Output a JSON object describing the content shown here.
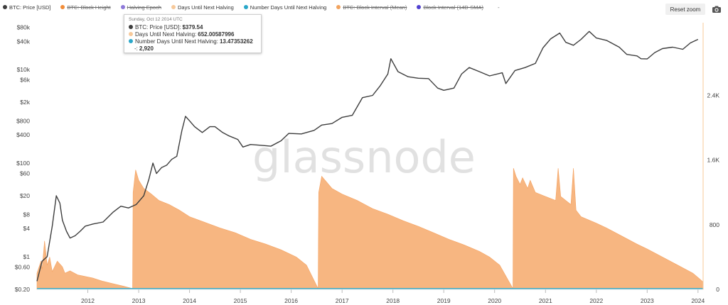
{
  "legend": {
    "items": [
      {
        "label": "BTC: Price [USD]",
        "color": "#3d3d3d",
        "hidden": false
      },
      {
        "label": "BTC: Block Height",
        "color": "#f28c38",
        "hidden": true
      },
      {
        "label": "Halving Epoch",
        "color": "#8e79d9",
        "hidden": true
      },
      {
        "label": "Days Until Next Halving",
        "color": "#f7c99a",
        "hidden": false
      },
      {
        "label": "Number Days Until Next Halving",
        "color": "#2aa7c9",
        "hidden": false
      },
      {
        "label": "BTC: Block Interval (Mean)",
        "color": "#f2a35e",
        "hidden": true
      },
      {
        "label": "Block Interval (14D-SMA)",
        "color": "#5040d0",
        "hidden": true
      }
    ],
    "more": "-"
  },
  "toolbar": {
    "reset_zoom": "Reset zoom",
    "camera_icon": "camera-icon"
  },
  "watermark": "glassnode",
  "tooltip": {
    "date": "Sunday, Oct 12 2014 UTC",
    "rows": [
      {
        "label": "BTC: Price [USD]",
        "value": "$379.54",
        "color": "#3d3d3d"
      },
      {
        "label": "Days Until Next Halving",
        "value": "652.00587996",
        "color": "#f7c99a"
      },
      {
        "label": "Number Days Until Next Halving",
        "value": "13.47353262",
        "color": "#2aa7c9"
      },
      {
        "label": "-:",
        "value": "2,920",
        "color": ""
      }
    ]
  },
  "chart_data": {
    "type": "line",
    "left_axis": {
      "scale": "log",
      "ticks": [
        {
          "label": "$80k",
          "value": 80000
        },
        {
          "label": "$40k",
          "value": 40000
        },
        {
          "label": "$10k",
          "value": 10000
        },
        {
          "label": "$6k",
          "value": 6000
        },
        {
          "label": "$2k",
          "value": 2000
        },
        {
          "label": "$800",
          "value": 800
        },
        {
          "label": "$400",
          "value": 400
        },
        {
          "label": "$100",
          "value": 100
        },
        {
          "label": "$60",
          "value": 60
        },
        {
          "label": "$20",
          "value": 20
        },
        {
          "label": "$8",
          "value": 8
        },
        {
          "label": "$4",
          "value": 4
        },
        {
          "label": "$1",
          "value": 1
        },
        {
          "label": "$0.60",
          "value": 0.6
        },
        {
          "label": "$0.20",
          "value": 0.2
        }
      ]
    },
    "right_axis": {
      "scale": "linear",
      "range": [
        0,
        3300
      ],
      "ticks": [
        {
          "label": "0",
          "value": 0
        },
        {
          "label": "800",
          "value": 800
        },
        {
          "label": "1.6K",
          "value": 1600
        },
        {
          "label": "2.4K",
          "value": 2400
        }
      ]
    },
    "x_axis": {
      "type": "year",
      "range": [
        2011.0,
        2024.1
      ],
      "ticks": [
        {
          "label": "2012",
          "value": 2012
        },
        {
          "label": "2013",
          "value": 2013
        },
        {
          "label": "2014",
          "value": 2014
        },
        {
          "label": "2015",
          "value": 2015
        },
        {
          "label": "2016",
          "value": 2016
        },
        {
          "label": "2017",
          "value": 2017
        },
        {
          "label": "2018",
          "value": 2018
        },
        {
          "label": "2019",
          "value": 2019
        },
        {
          "label": "2020",
          "value": 2020
        },
        {
          "label": "2021",
          "value": 2021
        },
        {
          "label": "2022",
          "value": 2022
        },
        {
          "label": "2023",
          "value": 2023
        },
        {
          "label": "2024",
          "value": 2024
        }
      ]
    },
    "grid": false,
    "series": [
      {
        "name": "BTC: Price [USD]",
        "axis": "left",
        "color": "#3d3d3d",
        "x": [
          2011.0,
          2011.1,
          2011.2,
          2011.3,
          2011.38,
          2011.45,
          2011.5,
          2011.58,
          2011.65,
          2011.75,
          2011.85,
          2011.95,
          2012.1,
          2012.3,
          2012.5,
          2012.65,
          2012.8,
          2012.95,
          2013.1,
          2013.2,
          2013.28,
          2013.35,
          2013.45,
          2013.55,
          2013.65,
          2013.75,
          2013.85,
          2013.92,
          2014.0,
          2014.1,
          2014.25,
          2014.4,
          2014.5,
          2014.65,
          2014.78,
          2014.95,
          2015.05,
          2015.2,
          2015.4,
          2015.6,
          2015.8,
          2015.95,
          2016.2,
          2016.45,
          2016.6,
          2016.8,
          2017.0,
          2017.2,
          2017.4,
          2017.6,
          2017.75,
          2017.9,
          2017.96,
          2018.1,
          2018.3,
          2018.5,
          2018.7,
          2018.88,
          2019.0,
          2019.2,
          2019.35,
          2019.5,
          2019.7,
          2019.9,
          2020.15,
          2020.22,
          2020.4,
          2020.6,
          2020.8,
          2020.95,
          2021.1,
          2021.28,
          2021.4,
          2021.55,
          2021.7,
          2021.86,
          2022.0,
          2022.2,
          2022.45,
          2022.6,
          2022.8,
          2022.88,
          2023.0,
          2023.15,
          2023.3,
          2023.5,
          2023.7,
          2023.85,
          2024.0
        ],
        "values": [
          0.3,
          0.8,
          1.0,
          4.5,
          20,
          14,
          6,
          3.5,
          2.5,
          2.8,
          3.5,
          4.5,
          5.0,
          5.5,
          9.0,
          12,
          11,
          13,
          20,
          45,
          100,
          60,
          80,
          90,
          120,
          140,
          500,
          1000,
          800,
          600,
          450,
          600,
          600,
          450,
          380,
          320,
          220,
          250,
          240,
          230,
          300,
          430,
          420,
          500,
          650,
          700,
          950,
          1050,
          2500,
          2800,
          4500,
          8000,
          17000,
          9000,
          7000,
          6500,
          6400,
          4000,
          3600,
          4000,
          8000,
          11000,
          9000,
          7300,
          8500,
          5000,
          9500,
          11000,
          13500,
          29000,
          45000,
          60000,
          38000,
          33000,
          44000,
          65000,
          47000,
          42000,
          30000,
          21000,
          19500,
          17000,
          16800,
          23000,
          28000,
          30000,
          27000,
          37000,
          44000
        ]
      },
      {
        "name": "Days Until Next Halving",
        "axis": "right",
        "color": "#f7b27a",
        "x": [
          2011.0,
          2011.08,
          2011.1,
          2011.15,
          2011.2,
          2011.25,
          2011.3,
          2011.4,
          2011.5,
          2011.55,
          2011.65,
          2011.8,
          2011.95,
          2012.1,
          2012.3,
          2012.5,
          2012.7,
          2012.88,
          2012.89,
          2012.94,
          2013.0,
          2013.1,
          2013.25,
          2013.4,
          2013.6,
          2013.8,
          2014.0,
          2014.3,
          2014.6,
          2014.9,
          2015.2,
          2015.5,
          2015.8,
          2016.1,
          2016.3,
          2016.53,
          2016.54,
          2016.6,
          2016.8,
          2017.0,
          2017.3,
          2017.6,
          2017.9,
          2018.2,
          2018.5,
          2018.8,
          2019.1,
          2019.4,
          2019.7,
          2019.9,
          2020.1,
          2020.36,
          2020.37,
          2020.42,
          2020.5,
          2020.55,
          2020.65,
          2020.7,
          2020.8,
          2021.0,
          2021.2,
          2021.25,
          2021.3,
          2021.5,
          2021.55,
          2021.6,
          2021.7,
          2022.0,
          2022.2,
          2022.5,
          2022.8,
          2023.0,
          2023.3,
          2023.6,
          2023.9,
          2024.05,
          2024.1
        ],
        "values": [
          200,
          350,
          250,
          600,
          300,
          400,
          220,
          350,
          280,
          200,
          230,
          180,
          160,
          140,
          100,
          70,
          40,
          10,
          1200,
          1480,
          1350,
          1250,
          1180,
          1100,
          1050,
          980,
          900,
          830,
          760,
          700,
          620,
          560,
          490,
          400,
          300,
          10,
          1200,
          1400,
          1250,
          1180,
          1100,
          1000,
          930,
          850,
          780,
          700,
          620,
          550,
          470,
          400,
          300,
          10,
          1500,
          1400,
          1300,
          1380,
          1250,
          1350,
          1200,
          1150,
          1100,
          1500,
          1150,
          1050,
          1500,
          980,
          900,
          820,
          760,
          660,
          560,
          500,
          400,
          300,
          200,
          120,
          90
        ]
      },
      {
        "name": "Number Days Until Next Halving",
        "axis": "right",
        "color": "#2aa7c9",
        "x": [
          2011.0,
          2024.1
        ],
        "values": [
          10,
          10
        ]
      }
    ]
  }
}
